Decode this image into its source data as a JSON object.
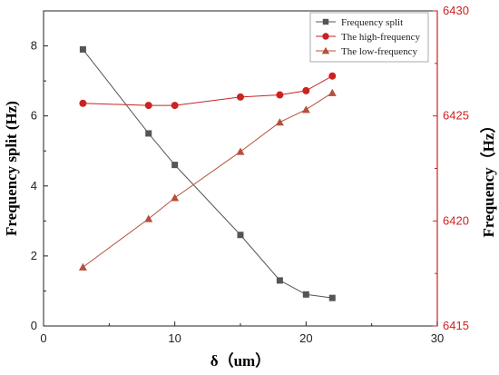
{
  "chart_data": {
    "type": "line",
    "xlabel": "δ（um）",
    "ylabel_left": "Frequency split (Hz)",
    "ylabel_right": "Frequency（Hz）",
    "xlim": [
      0,
      30
    ],
    "ylim_left": [
      0,
      9
    ],
    "ylim_right": [
      6415,
      6430
    ],
    "x_ticks": [
      "0",
      "10",
      "20",
      "30"
    ],
    "y_left_ticks": [
      "0",
      "2",
      "4",
      "6",
      "8"
    ],
    "y_right_ticks": [
      "6415",
      "6420",
      "6425",
      "6430"
    ],
    "right_axis_color": "#cc2222",
    "legend_position": "top-right",
    "x": [
      3,
      8,
      10,
      15,
      18,
      20,
      22
    ],
    "series": [
      {
        "name": "Frequency split",
        "axis": "left",
        "marker": "square",
        "color": "#555555",
        "values": [
          7.9,
          5.5,
          4.6,
          2.6,
          1.3,
          0.9,
          0.8
        ]
      },
      {
        "name": "The high-frequency",
        "axis": "right",
        "marker": "circle",
        "color": "#cc2222",
        "values": [
          6425.6,
          6425.5,
          6425.5,
          6425.9,
          6426.0,
          6426.2,
          6426.9
        ]
      },
      {
        "name": "The low-frequency",
        "axis": "right",
        "marker": "triangle",
        "color": "#b5503c",
        "values": [
          6417.8,
          6420.1,
          6421.1,
          6423.3,
          6424.7,
          6425.3,
          6426.1
        ]
      }
    ]
  }
}
